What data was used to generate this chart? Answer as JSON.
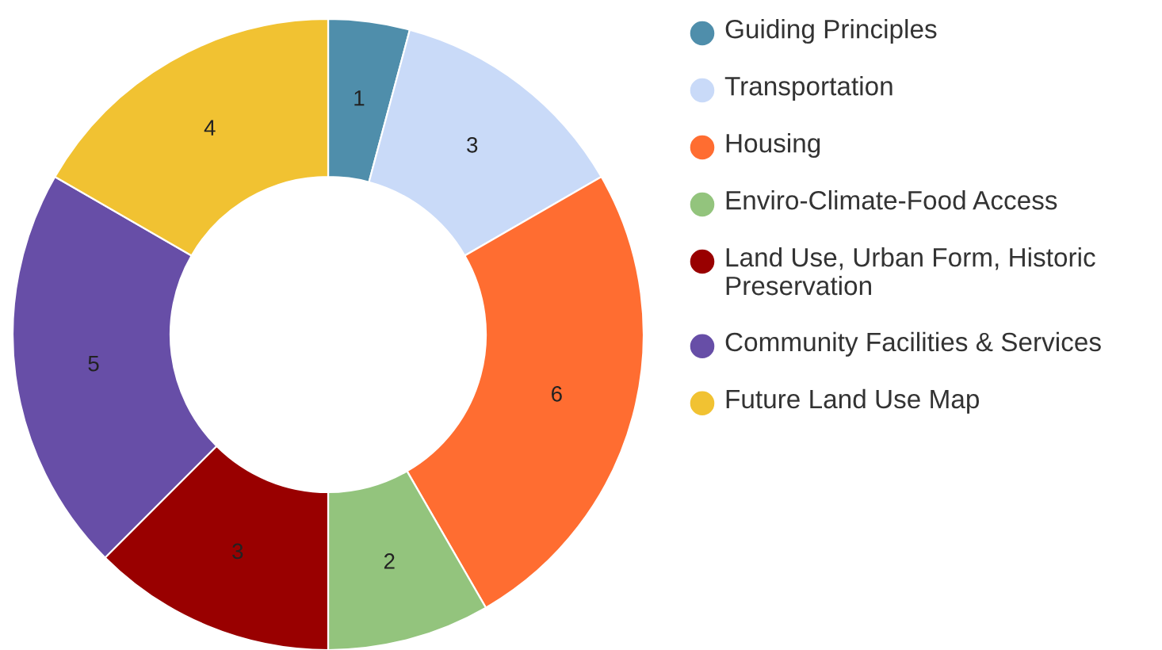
{
  "chart_data": {
    "type": "donut",
    "categories": [
      "Guiding Principles",
      "Transportation",
      "Housing",
      "Enviro-Climate-Food Access",
      "Land Use, Urban Form, Historic Preservation",
      "Community Facilities & Services",
      "Future Land Use Map"
    ],
    "values": [
      1,
      3,
      6,
      2,
      3,
      5,
      4
    ],
    "colors": [
      "#4f8eab",
      "#c9daf8",
      "#ff6d31",
      "#93c47d",
      "#990000",
      "#674ea7",
      "#f1c232"
    ],
    "data_labels": true,
    "legend": "right"
  }
}
